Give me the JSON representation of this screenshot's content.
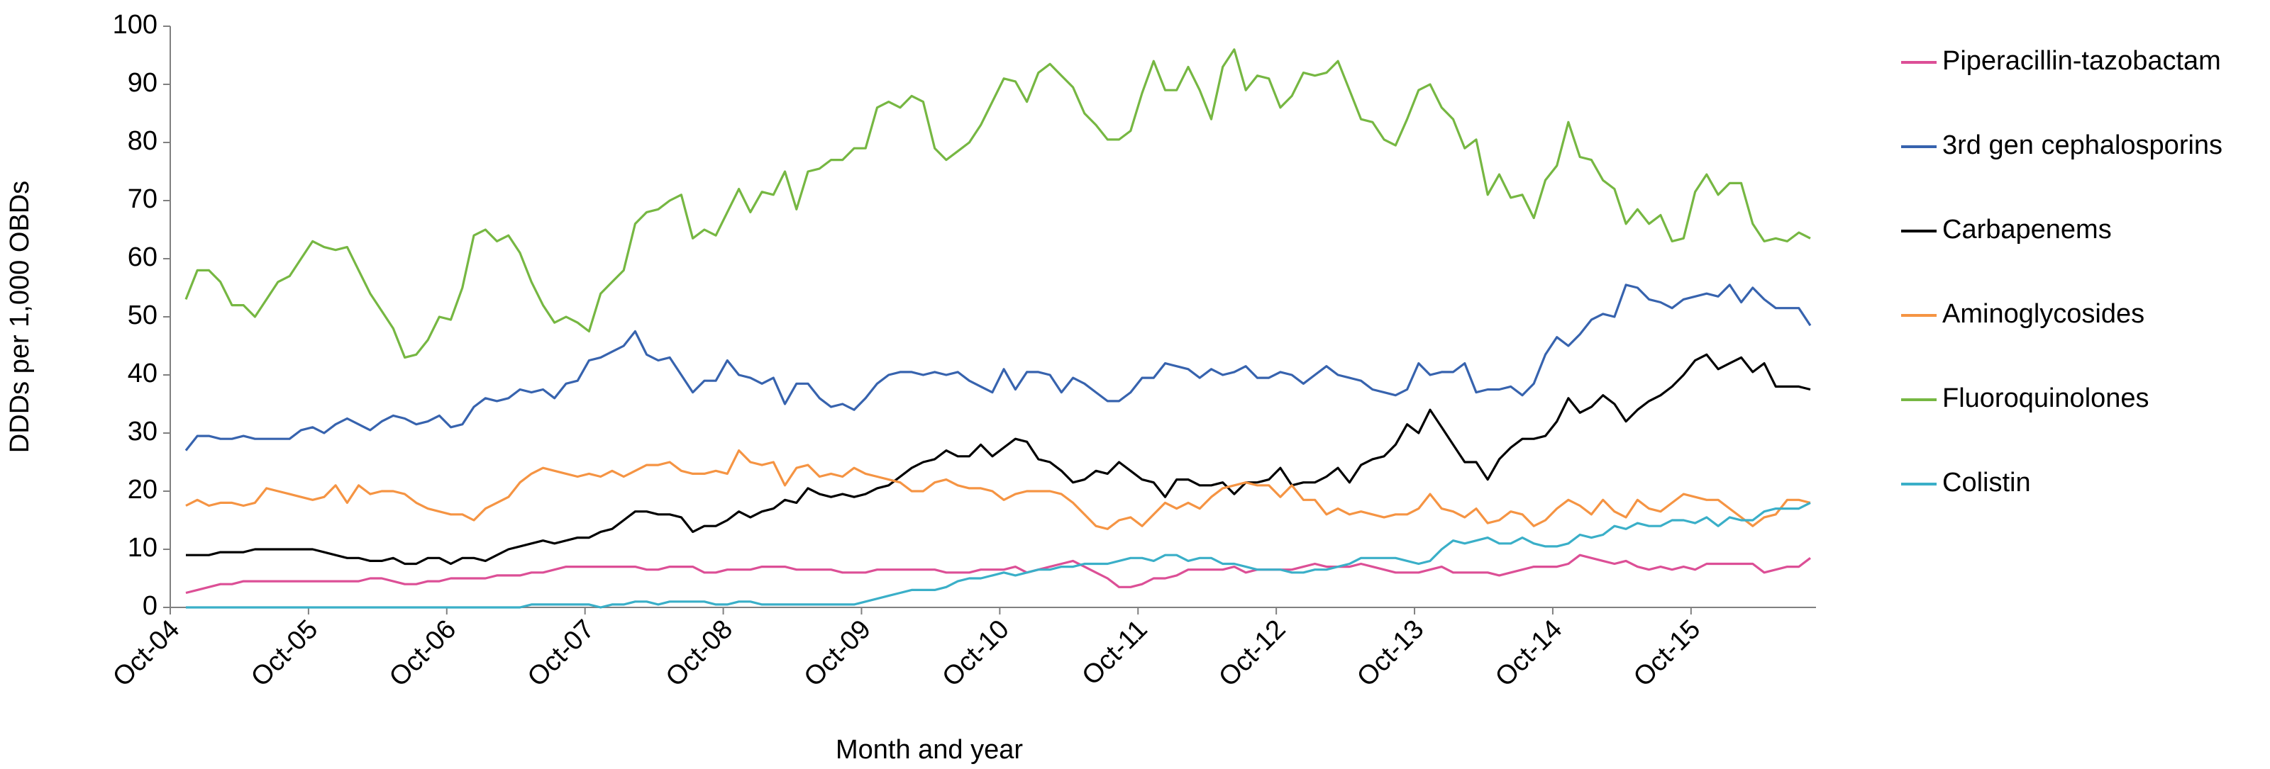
{
  "chart_data": {
    "type": "line",
    "x_label": "Month and year",
    "y_label": "DDDs per 1,000 OBDs",
    "categories": [
      "Oct-04",
      null,
      null,
      null,
      null,
      null,
      null,
      null,
      null,
      null,
      null,
      null,
      "Oct-05",
      null,
      null,
      null,
      null,
      null,
      null,
      null,
      null,
      null,
      null,
      null,
      "Oct-06",
      null,
      null,
      null,
      null,
      null,
      null,
      null,
      null,
      null,
      null,
      null,
      "Oct-07",
      null,
      null,
      null,
      null,
      null,
      null,
      null,
      null,
      null,
      null,
      null,
      "Oct-08",
      null,
      null,
      null,
      null,
      null,
      null,
      null,
      null,
      null,
      null,
      null,
      "Oct-09",
      null,
      null,
      null,
      null,
      null,
      null,
      null,
      null,
      null,
      null,
      null,
      "Oct-10",
      null,
      null,
      null,
      null,
      null,
      null,
      null,
      null,
      null,
      null,
      null,
      "Oct-11",
      null,
      null,
      null,
      null,
      null,
      null,
      null,
      null,
      null,
      null,
      null,
      "Oct-12",
      null,
      null,
      null,
      null,
      null,
      null,
      null,
      null,
      null,
      null,
      null,
      "Oct-13",
      null,
      null,
      null,
      null,
      null,
      null,
      null,
      null,
      null,
      null,
      null,
      "Oct-14",
      null,
      null,
      null,
      null,
      null,
      null,
      null,
      null,
      null,
      null,
      null,
      "Oct-15",
      null,
      null,
      null,
      null,
      null,
      null,
      null,
      null,
      null
    ],
    "ylim": [
      0,
      100
    ],
    "yticks": [
      0,
      10,
      20,
      30,
      40,
      50,
      60,
      70,
      80,
      90,
      100
    ],
    "grid": false,
    "legend": "right",
    "series": [
      {
        "name": "Piperacillin-tazobactam",
        "color": "#dc4f96",
        "values": [
          2.5,
          3,
          3.5,
          4,
          4,
          4.5,
          4.5,
          4.5,
          4.5,
          4.5,
          4.5,
          4.5,
          4.5,
          4.5,
          4.5,
          4.5,
          5,
          5,
          4.5,
          4,
          4,
          4.5,
          4.5,
          5,
          5,
          5,
          5,
          5.5,
          5.5,
          5.5,
          6,
          6,
          6.5,
          7,
          7,
          7,
          7,
          7,
          7,
          7,
          6.5,
          6.5,
          7,
          7,
          7,
          6,
          6,
          6.5,
          6.5,
          6.5,
          7,
          7,
          7,
          6.5,
          6.5,
          6.5,
          6.5,
          6,
          6,
          6,
          6.5,
          6.5,
          6.5,
          6.5,
          6.5,
          6.5,
          6,
          6,
          6,
          6.5,
          6.5,
          6.5,
          7,
          6,
          6.5,
          7,
          7.5,
          8,
          7,
          6,
          5,
          3.5,
          3.5,
          4,
          5,
          5,
          5.5,
          6.5,
          6.5,
          6.5,
          6.5,
          7,
          6,
          6.5,
          6.5,
          6.5,
          6.5,
          7,
          7.5,
          7,
          7,
          7,
          7.5,
          7,
          6.5,
          6,
          6,
          6,
          6.5,
          7,
          6,
          6,
          6,
          6,
          5.5,
          6,
          6.5,
          7,
          7,
          7,
          7.5,
          9,
          8.5,
          8,
          7.5,
          8,
          7,
          6.5,
          7,
          6.5,
          7,
          6.5,
          7.5,
          7.5,
          7.5,
          7.5,
          7.5,
          6,
          6.5,
          7,
          7,
          8.5
        ]
      },
      {
        "name": "3rd gen cephalosporins",
        "color": "#3763ae",
        "values": [
          27,
          29.5,
          29.5,
          29,
          29,
          29.5,
          29,
          29,
          29,
          29,
          30.5,
          31,
          30,
          31.5,
          32.5,
          31.5,
          30.5,
          32,
          33,
          32.5,
          31.5,
          32,
          33,
          31,
          31.5,
          34.5,
          36,
          35.5,
          36,
          37.5,
          37,
          37.5,
          36,
          38.5,
          39,
          42.5,
          43,
          44,
          45,
          47.5,
          43.5,
          42.5,
          43,
          40,
          37,
          39,
          39,
          42.5,
          40,
          39.5,
          38.5,
          39.5,
          35,
          38.5,
          38.5,
          36,
          34.5,
          35,
          34,
          36,
          38.5,
          40,
          40.5,
          40.5,
          40,
          40.5,
          40,
          40.5,
          39,
          38,
          37,
          41,
          37.5,
          40.5,
          40.5,
          40,
          37,
          39.5,
          38.5,
          37,
          35.5,
          35.5,
          37,
          39.5,
          39.5,
          42,
          41.5,
          41,
          39.5,
          41,
          40,
          40.5,
          41.5,
          39.5,
          39.5,
          40.5,
          40,
          38.5,
          40,
          41.5,
          40,
          39.5,
          39,
          37.5,
          37,
          36.5,
          37.5,
          42,
          40,
          40.5,
          40.5,
          42,
          37,
          37.5,
          37.5,
          38,
          36.5,
          38.5,
          43.5,
          46.5,
          45,
          47,
          49.5,
          50.5,
          50,
          55.5,
          55,
          53,
          52.5,
          51.5,
          53,
          53.5,
          54,
          53.5,
          55.5,
          52.5,
          55,
          53,
          51.5,
          51.5,
          51.5,
          48.5
        ]
      },
      {
        "name": "Carbapenems",
        "color": "#000000",
        "values": [
          9,
          9,
          9,
          9.5,
          9.5,
          9.5,
          10,
          10,
          10,
          10,
          10,
          10,
          9.5,
          9,
          8.5,
          8.5,
          8,
          8,
          8.5,
          7.5,
          7.5,
          8.5,
          8.5,
          7.5,
          8.5,
          8.5,
          8,
          9,
          10,
          10.5,
          11,
          11.5,
          11,
          11.5,
          12,
          12,
          13,
          13.5,
          15,
          16.5,
          16.5,
          16,
          16,
          15.5,
          13,
          14,
          14,
          15,
          16.5,
          15.5,
          16.5,
          17,
          18.5,
          18,
          20.5,
          19.5,
          19,
          19.5,
          19,
          19.5,
          20.5,
          21,
          22.5,
          24,
          25,
          25.5,
          27,
          26,
          26,
          28,
          26,
          27.5,
          29,
          28.5,
          25.5,
          25,
          23.5,
          21.5,
          22,
          23.5,
          23,
          25,
          23.5,
          22,
          21.5,
          19,
          22,
          22,
          21,
          21,
          21.5,
          19.5,
          21.5,
          21.5,
          22,
          24,
          21,
          21.5,
          21.5,
          22.5,
          24,
          21.5,
          24.5,
          25.5,
          26,
          28,
          31.5,
          30,
          34,
          31,
          28,
          25,
          25,
          22,
          25.5,
          27.5,
          29,
          29,
          29.5,
          32,
          36,
          33.5,
          34.5,
          36.5,
          35,
          32,
          34,
          35.5,
          36.5,
          38,
          40,
          42.5,
          43.5,
          41,
          42,
          43,
          40.5,
          42,
          38,
          38,
          38,
          37.5
        ]
      },
      {
        "name": "Aminoglycosides",
        "color": "#f59443",
        "values": [
          17.5,
          18.5,
          17.5,
          18,
          18,
          17.5,
          18,
          20.5,
          20,
          19.5,
          19,
          18.5,
          19,
          21,
          18,
          21,
          19.5,
          20,
          20,
          19.5,
          18,
          17,
          16.5,
          16,
          16,
          15,
          17,
          18,
          19,
          21.5,
          23,
          24,
          23.5,
          23,
          22.5,
          23,
          22.5,
          23.5,
          22.5,
          23.5,
          24.5,
          24.5,
          25,
          23.5,
          23,
          23,
          23.5,
          23,
          27,
          25,
          24.5,
          25,
          21,
          24,
          24.5,
          22.5,
          23,
          22.5,
          24,
          23,
          22.5,
          22,
          21.5,
          20,
          20,
          21.5,
          22,
          21,
          20.5,
          20.5,
          20,
          18.5,
          19.5,
          20,
          20,
          20,
          19.5,
          18,
          16,
          14,
          13.5,
          15,
          15.5,
          14,
          16,
          18,
          17,
          18,
          17,
          19,
          20.5,
          21,
          21.5,
          21,
          21,
          19,
          21,
          18.5,
          18.5,
          16,
          17,
          16,
          16.5,
          16,
          15.5,
          16,
          16,
          17,
          19.5,
          17,
          16.5,
          15.5,
          17,
          14.5,
          15,
          16.5,
          16,
          14,
          15,
          17,
          18.5,
          17.5,
          16,
          18.5,
          16.5,
          15.5,
          18.5,
          17,
          16.5,
          18,
          19.5,
          19,
          18.5,
          18.5,
          17,
          15.5,
          14,
          15.5,
          16,
          18.5,
          18.5,
          18
        ]
      },
      {
        "name": "Fluoroquinolones",
        "color": "#76b742",
        "values": [
          53,
          58,
          58,
          56,
          52,
          52,
          50,
          53,
          56,
          57,
          60,
          63,
          62,
          61.5,
          62,
          58,
          54,
          51,
          48,
          43,
          43.5,
          46,
          50,
          49.5,
          55,
          64,
          65,
          63,
          64,
          61,
          56,
          52,
          49,
          50,
          49,
          47.5,
          54,
          56,
          58,
          66,
          68,
          68.5,
          70,
          71,
          63.5,
          65,
          64,
          68,
          72,
          68,
          71.5,
          71,
          75,
          68.5,
          75,
          75.5,
          77,
          77,
          79,
          79,
          86,
          87,
          86,
          88,
          87,
          79,
          77,
          78.5,
          80,
          83,
          87,
          91,
          90.5,
          87,
          92,
          93.5,
          91.5,
          89.5,
          85,
          83,
          80.5,
          80.5,
          82,
          88.5,
          94,
          89,
          89,
          93,
          89,
          84,
          93,
          96,
          89,
          91.5,
          91,
          86,
          88,
          92,
          91.5,
          92,
          94,
          89,
          84,
          83.5,
          80.5,
          79.5,
          84,
          89,
          90,
          86,
          84,
          79,
          80.5,
          71,
          74.5,
          70.5,
          71,
          67,
          73.5,
          76,
          83.5,
          77.5,
          77,
          73.5,
          72,
          66,
          68.5,
          66,
          67.5,
          63,
          63.5,
          71.5,
          74.5,
          71,
          73,
          73,
          66,
          63,
          63.5,
          63,
          64.5,
          63.5
        ]
      },
      {
        "name": "Colistin",
        "color": "#3aafc8",
        "values": [
          0,
          0,
          0,
          0,
          0,
          0,
          0,
          0,
          0,
          0,
          0,
          0,
          0,
          0,
          0,
          0,
          0,
          0,
          0,
          0,
          0,
          0,
          0,
          0,
          0,
          0,
          0,
          0,
          0,
          0,
          0.5,
          0.5,
          0.5,
          0.5,
          0.5,
          0.5,
          0,
          0.5,
          0.5,
          1,
          1,
          0.5,
          1,
          1,
          1,
          1,
          0.5,
          0.5,
          1,
          1,
          0.5,
          0.5,
          0.5,
          0.5,
          0.5,
          0.5,
          0.5,
          0.5,
          0.5,
          1,
          1.5,
          2,
          2.5,
          3,
          3,
          3,
          3.5,
          4.5,
          5,
          5,
          5.5,
          6,
          5.5,
          6,
          6.5,
          6.5,
          7,
          7,
          7.5,
          7.5,
          7.5,
          8,
          8.5,
          8.5,
          8,
          9,
          9,
          8,
          8.5,
          8.5,
          7.5,
          7.5,
          7,
          6.5,
          6.5,
          6.5,
          6,
          6,
          6.5,
          6.5,
          7,
          7.5,
          8.5,
          8.5,
          8.5,
          8.5,
          8,
          7.5,
          8,
          10,
          11.5,
          11,
          11.5,
          12,
          11,
          11,
          12,
          11,
          10.5,
          10.5,
          11,
          12.5,
          12,
          12.5,
          14,
          13.5,
          14.5,
          14,
          14,
          15,
          15,
          14.5,
          15.5,
          14,
          15.5,
          15,
          15,
          16.5,
          17,
          17,
          17,
          18
        ]
      }
    ]
  }
}
